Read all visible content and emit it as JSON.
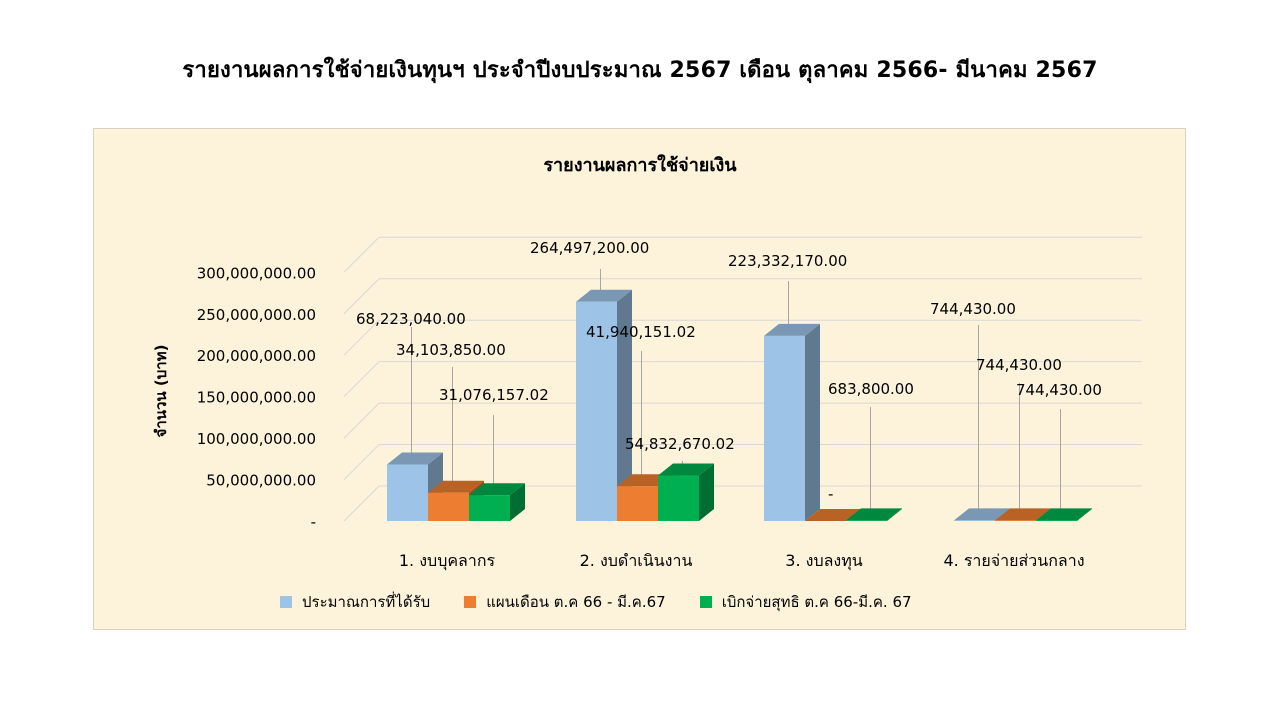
{
  "page": {
    "title": "รายงานผลการใช้จ่ายเงินทุนฯ ประจำปีงบประมาณ 2567 เดือน ตุลาคม 2566- มีนาคม 2567"
  },
  "chart_data": {
    "type": "bar",
    "title": "รายงานผลการใช้จ่ายเงิน",
    "ylabel": "จำนวน (บาท)",
    "xlabel": "",
    "ylim": [
      0,
      300000000
    ],
    "y_ticks": [
      {
        "value": 0,
        "label": "-"
      },
      {
        "value": 50000000,
        "label": "50,000,000.00"
      },
      {
        "value": 100000000,
        "label": "100,000,000.00"
      },
      {
        "value": 150000000,
        "label": "150,000,000.00"
      },
      {
        "value": 200000000,
        "label": "200,000,000.00"
      },
      {
        "value": 250000000,
        "label": "250,000,000.00"
      },
      {
        "value": 300000000,
        "label": "300,000,000.00"
      }
    ],
    "grid": true,
    "legend_position": "bottom",
    "categories": [
      "1. งบบุคลากร",
      "2. งบดำเนินงาน",
      "3. งบลงทุน",
      "4. รายจ่ายส่วนกลาง"
    ],
    "series": [
      {
        "name": "ประมาณการที่ได้รับ",
        "color": "#9dc3e6",
        "values": [
          68223040.0,
          264497200.0,
          223332170.0,
          744430.0
        ],
        "labels": [
          "68,223,040.00",
          "264,497,200.00",
          "223,332,170.00",
          "744,430.00"
        ]
      },
      {
        "name": "แผนเดือน ต.ค 66 - มี.ค.67",
        "color": "#ed7d31",
        "values": [
          34103850.0,
          41940151.02,
          0,
          744430.0
        ],
        "labels": [
          "34,103,850.00",
          "41,940,151.02",
          "-",
          "744,430.00"
        ]
      },
      {
        "name": "เบิกจ่ายสุทธิ ต.ค 66-มี.ค. 67",
        "color": "#00b050",
        "values": [
          31076157.02,
          54832670.02,
          683800.0,
          744430.0
        ],
        "labels": [
          "31,076,157.02",
          "54,832,670.02",
          "683,800.00",
          "744,430.00"
        ]
      }
    ]
  }
}
